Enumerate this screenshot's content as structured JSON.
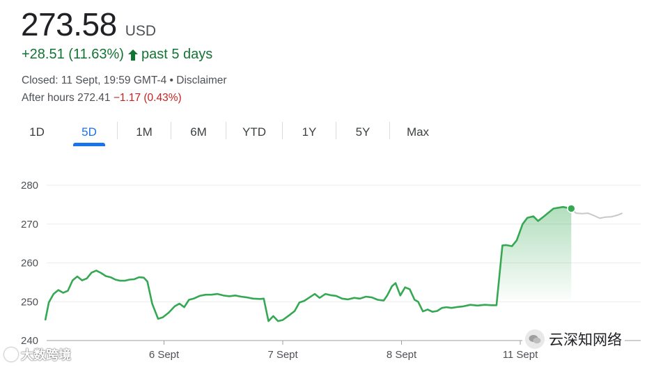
{
  "quote": {
    "price": "273.58",
    "currency": "USD",
    "change": "+28.51 (11.63%)",
    "period": "past 5 days",
    "closed_text": "Closed: 11 Sept, 19:59 GMT-4 • Disclaimer",
    "after_hours_label": "After hours 272.41",
    "after_hours_change": "−1.17 (0.43%)",
    "colors": {
      "positive": "#137333",
      "negative": "#c5221f",
      "accent": "#1a73e8",
      "line": "#34a853",
      "after_hours_line": "#c8c8c8"
    }
  },
  "tabs": [
    {
      "label": "1D",
      "active": false
    },
    {
      "label": "5D",
      "active": true
    },
    {
      "label": "1M",
      "active": false
    },
    {
      "label": "6M",
      "active": false
    },
    {
      "label": "YTD",
      "active": false
    },
    {
      "label": "1Y",
      "active": false
    },
    {
      "label": "5Y",
      "active": false
    },
    {
      "label": "Max",
      "active": false
    }
  ],
  "watermarks": {
    "left": "大数跨境",
    "right": "云深知网络"
  },
  "chart_data": {
    "type": "line",
    "ylim": [
      240,
      280
    ],
    "y_ticks": [
      280,
      270,
      260,
      250,
      240
    ],
    "x_ticks": [
      {
        "label": "6 Sept",
        "x": 1
      },
      {
        "label": "7 Sept",
        "x": 2
      },
      {
        "label": "8 Sept",
        "x": 3
      },
      {
        "label": "11 Sept",
        "x": 4
      }
    ],
    "grid": true,
    "x_range": [
      0,
      5
    ],
    "series": [
      {
        "values": [
          [
            0.0,
            245.2
          ],
          [
            0.03,
            249.8
          ],
          [
            0.07,
            252.0
          ],
          [
            0.11,
            253.0
          ],
          [
            0.15,
            252.3
          ],
          [
            0.19,
            252.8
          ],
          [
            0.23,
            255.5
          ],
          [
            0.27,
            256.5
          ],
          [
            0.31,
            255.5
          ],
          [
            0.35,
            256.0
          ],
          [
            0.39,
            257.5
          ],
          [
            0.43,
            258.0
          ],
          [
            0.47,
            257.4
          ],
          [
            0.51,
            256.6
          ],
          [
            0.55,
            256.3
          ],
          [
            0.59,
            255.7
          ],
          [
            0.63,
            255.4
          ],
          [
            0.67,
            255.4
          ],
          [
            0.71,
            255.7
          ],
          [
            0.75,
            255.8
          ],
          [
            0.79,
            256.3
          ],
          [
            0.83,
            256.2
          ],
          [
            0.86,
            255.2
          ],
          [
            0.9,
            249.5
          ],
          [
            0.95,
            245.6
          ],
          [
            0.99,
            246.0
          ],
          [
            1.04,
            247.2
          ],
          [
            1.09,
            248.8
          ],
          [
            1.13,
            249.5
          ],
          [
            1.17,
            248.6
          ],
          [
            1.21,
            250.5
          ],
          [
            1.25,
            250.8
          ],
          [
            1.3,
            251.5
          ],
          [
            1.35,
            251.8
          ],
          [
            1.4,
            251.8
          ],
          [
            1.45,
            252.0
          ],
          [
            1.5,
            251.6
          ],
          [
            1.55,
            251.4
          ],
          [
            1.6,
            251.6
          ],
          [
            1.65,
            251.3
          ],
          [
            1.7,
            251.1
          ],
          [
            1.75,
            250.8
          ],
          [
            1.81,
            250.7
          ],
          [
            1.84,
            250.8
          ],
          [
            1.88,
            245.0
          ],
          [
            1.92,
            246.3
          ],
          [
            1.96,
            245.0
          ],
          [
            2.0,
            245.3
          ],
          [
            2.05,
            246.4
          ],
          [
            2.1,
            247.6
          ],
          [
            2.14,
            249.8
          ],
          [
            2.18,
            250.2
          ],
          [
            2.22,
            251.0
          ],
          [
            2.27,
            252.0
          ],
          [
            2.31,
            251.0
          ],
          [
            2.36,
            252.0
          ],
          [
            2.4,
            251.7
          ],
          [
            2.45,
            251.5
          ],
          [
            2.5,
            250.8
          ],
          [
            2.55,
            250.6
          ],
          [
            2.6,
            251.0
          ],
          [
            2.65,
            250.8
          ],
          [
            2.7,
            251.3
          ],
          [
            2.75,
            251.1
          ],
          [
            2.8,
            250.5
          ],
          [
            2.85,
            250.3
          ],
          [
            2.88,
            251.6
          ],
          [
            2.92,
            254.0
          ],
          [
            2.95,
            254.8
          ],
          [
            2.99,
            251.6
          ],
          [
            3.03,
            253.7
          ],
          [
            3.07,
            253.2
          ],
          [
            3.11,
            250.5
          ],
          [
            3.14,
            250.0
          ],
          [
            3.18,
            247.5
          ],
          [
            3.22,
            248.0
          ],
          [
            3.26,
            247.4
          ],
          [
            3.3,
            247.6
          ],
          [
            3.34,
            248.4
          ],
          [
            3.38,
            248.6
          ],
          [
            3.42,
            248.4
          ],
          [
            3.46,
            248.6
          ],
          [
            3.52,
            248.8
          ],
          [
            3.58,
            249.2
          ],
          [
            3.64,
            249.0
          ],
          [
            3.7,
            249.2
          ],
          [
            3.76,
            249.1
          ],
          [
            3.8,
            249.1
          ],
          [
            3.85,
            264.5
          ],
          [
            3.88,
            264.6
          ],
          [
            3.93,
            264.3
          ],
          [
            3.97,
            265.8
          ],
          [
            4.02,
            270.0
          ],
          [
            4.06,
            271.6
          ],
          [
            4.11,
            272.0
          ],
          [
            4.15,
            270.8
          ],
          [
            4.2,
            272.0
          ],
          [
            4.28,
            274.0
          ],
          [
            4.36,
            274.4
          ],
          [
            4.43,
            274.0
          ]
        ]
      },
      {
        "values": [
          [
            4.43,
            274.0
          ],
          [
            4.47,
            272.8
          ],
          [
            4.52,
            272.7
          ],
          [
            4.57,
            272.8
          ],
          [
            4.62,
            272.2
          ],
          [
            4.67,
            271.5
          ],
          [
            4.72,
            271.8
          ],
          [
            4.77,
            271.9
          ],
          [
            4.82,
            272.3
          ],
          [
            4.86,
            272.8
          ]
        ]
      }
    ],
    "last_point": [
      4.43,
      274.0
    ]
  }
}
